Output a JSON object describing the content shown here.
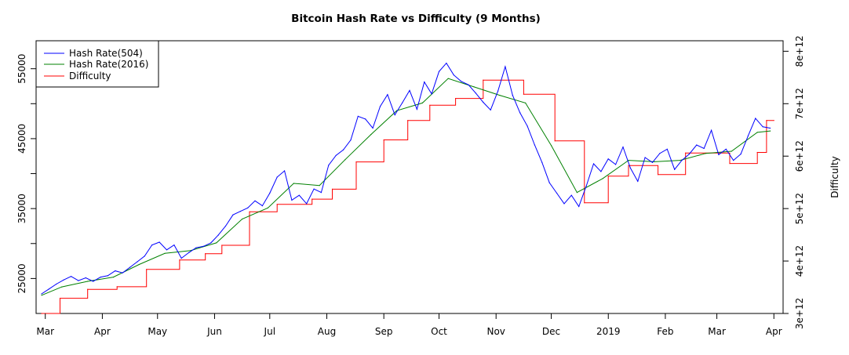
{
  "chart_data": {
    "type": "line",
    "title": "Bitcoin Hash Rate vs Difficulty (9 Months)",
    "xlabel": "",
    "ylabel_left": "",
    "ylabel_right": "Difficulty",
    "xlim": [
      "2018-02-24",
      "2019-04-06"
    ],
    "ylim_left": [
      20000,
      59000
    ],
    "ylim_right": [
      3000000000000.0,
      8200000000000.0
    ],
    "x_ticks": [
      {
        "date": "2018-03-01",
        "label": "Mar"
      },
      {
        "date": "2018-04-01",
        "label": "Apr"
      },
      {
        "date": "2018-05-01",
        "label": "May"
      },
      {
        "date": "2018-06-01",
        "label": "Jun"
      },
      {
        "date": "2018-07-01",
        "label": "Jul"
      },
      {
        "date": "2018-08-01",
        "label": "Aug"
      },
      {
        "date": "2018-09-01",
        "label": "Sep"
      },
      {
        "date": "2018-10-01",
        "label": "Oct"
      },
      {
        "date": "2018-11-01",
        "label": "Nov"
      },
      {
        "date": "2018-12-01",
        "label": "Dec"
      },
      {
        "date": "2019-01-01",
        "label": "2019"
      },
      {
        "date": "2019-02-01",
        "label": "Feb"
      },
      {
        "date": "2019-03-01",
        "label": "Mar"
      },
      {
        "date": "2019-04-01",
        "label": "Apr"
      }
    ],
    "y_ticks_left": [
      {
        "value": 25000,
        "label": "25000"
      },
      {
        "value": 35000,
        "label": "35000"
      },
      {
        "value": 45000,
        "label": "45000"
      },
      {
        "value": 55000,
        "label": "55000"
      }
    ],
    "y_minor_left": [
      30000,
      40000,
      50000
    ],
    "y_ticks_right": [
      {
        "value": 3000000000000.0,
        "label": "3e+12"
      },
      {
        "value": 4000000000000.0,
        "label": "4e+12"
      },
      {
        "value": 5000000000000.0,
        "label": "5e+12"
      },
      {
        "value": 6000000000000.0,
        "label": "6e+12"
      },
      {
        "value": 7000000000000.0,
        "label": "7e+12"
      },
      {
        "value": 8000000000000.0,
        "label": "8e+12"
      }
    ],
    "legend": {
      "position": "top-left",
      "entries": [
        {
          "name": "Hash Rate(504)",
          "color": "#0000ff"
        },
        {
          "name": "Hash Rate(2016)",
          "color": "#008000"
        },
        {
          "name": "Difficulty",
          "color": "#ff0000"
        }
      ]
    },
    "grid": false,
    "series": [
      {
        "name": "Hash Rate(504)",
        "axis": "left",
        "color": "#0000ff",
        "x": [
          "2018-02-27",
          "2018-03-03",
          "2018-03-07",
          "2018-03-11",
          "2018-03-15",
          "2018-03-19",
          "2018-03-23",
          "2018-03-27",
          "2018-03-31",
          "2018-04-04",
          "2018-04-08",
          "2018-04-12",
          "2018-04-16",
          "2018-04-20",
          "2018-04-24",
          "2018-04-28",
          "2018-05-02",
          "2018-05-06",
          "2018-05-10",
          "2018-05-14",
          "2018-05-18",
          "2018-05-22",
          "2018-05-26",
          "2018-05-30",
          "2018-06-03",
          "2018-06-07",
          "2018-06-11",
          "2018-06-15",
          "2018-06-19",
          "2018-06-23",
          "2018-06-27",
          "2018-07-01",
          "2018-07-05",
          "2018-07-09",
          "2018-07-13",
          "2018-07-17",
          "2018-07-21",
          "2018-07-25",
          "2018-07-29",
          "2018-08-02",
          "2018-08-06",
          "2018-08-10",
          "2018-08-14",
          "2018-08-18",
          "2018-08-22",
          "2018-08-26",
          "2018-08-30",
          "2018-09-03",
          "2018-09-07",
          "2018-09-11",
          "2018-09-15",
          "2018-09-19",
          "2018-09-23",
          "2018-09-27",
          "2018-10-01",
          "2018-10-05",
          "2018-10-09",
          "2018-10-13",
          "2018-10-17",
          "2018-10-21",
          "2018-10-25",
          "2018-10-29",
          "2018-11-02",
          "2018-11-06",
          "2018-11-10",
          "2018-11-14",
          "2018-11-18",
          "2018-11-22",
          "2018-11-26",
          "2018-11-30",
          "2018-12-04",
          "2018-12-08",
          "2018-12-12",
          "2018-12-16",
          "2018-12-20",
          "2018-12-24",
          "2018-12-28",
          "2019-01-01",
          "2019-01-05",
          "2019-01-09",
          "2019-01-13",
          "2019-01-17",
          "2019-01-21",
          "2019-01-25",
          "2019-01-29",
          "2019-02-02",
          "2019-02-06",
          "2019-02-10",
          "2019-02-14",
          "2019-02-18",
          "2019-02-22",
          "2019-02-26",
          "2019-03-02",
          "2019-03-06",
          "2019-03-10",
          "2019-03-14",
          "2019-03-18",
          "2019-03-22",
          "2019-03-26",
          "2019-03-30"
        ],
        "values": [
          22800,
          23500,
          24200,
          24800,
          25300,
          24700,
          25100,
          24600,
          25200,
          25400,
          26100,
          25800,
          26600,
          27400,
          28200,
          29800,
          30200,
          29100,
          29800,
          27900,
          28700,
          29400,
          29600,
          30100,
          31200,
          32500,
          34100,
          34600,
          35100,
          36100,
          35400,
          37200,
          39500,
          40400,
          36200,
          36900,
          35700,
          37800,
          37300,
          41200,
          42600,
          43400,
          44800,
          48200,
          47800,
          46500,
          49600,
          51300,
          48400,
          50100,
          51900,
          49200,
          53100,
          51400,
          54600,
          55800,
          54100,
          53200,
          52700,
          51500,
          50200,
          49100,
          51800,
          55300,
          51200,
          48700,
          46800,
          44100,
          41600,
          38700,
          37200,
          35700,
          36900,
          35300,
          38200,
          41400,
          40300,
          42100,
          41300,
          43800,
          40800,
          38900,
          42300,
          41600,
          42900,
          43500,
          40600,
          41900,
          42800,
          44100,
          43600,
          46200,
          42700,
          43500,
          41900,
          42800,
          45400,
          47900,
          46700,
          46500
        ]
      },
      {
        "name": "Hash Rate(2016)",
        "axis": "left",
        "color": "#008000",
        "x": [
          "2018-02-27",
          "2018-03-10",
          "2018-03-24",
          "2018-04-07",
          "2018-04-21",
          "2018-05-05",
          "2018-05-19",
          "2018-06-02",
          "2018-06-16",
          "2018-06-30",
          "2018-07-14",
          "2018-07-28",
          "2018-08-11",
          "2018-08-25",
          "2018-09-08",
          "2018-09-22",
          "2018-10-06",
          "2018-10-20",
          "2018-11-03",
          "2018-11-17",
          "2018-12-01",
          "2018-12-15",
          "2018-12-29",
          "2019-01-12",
          "2019-01-26",
          "2019-02-09",
          "2019-02-23",
          "2019-03-09",
          "2019-03-23",
          "2019-03-30"
        ],
        "values": [
          22600,
          23800,
          24600,
          25200,
          27000,
          28600,
          29000,
          30100,
          33500,
          35100,
          38600,
          38300,
          42000,
          45600,
          49000,
          50100,
          53600,
          52400,
          51200,
          50100,
          44000,
          37300,
          39300,
          41900,
          41700,
          41900,
          42900,
          43200,
          45900,
          46100
        ]
      },
      {
        "name": "Difficulty",
        "axis": "right",
        "color": "#ff0000",
        "step": true,
        "x": [
          "2018-02-27",
          "2018-03-09",
          "2018-03-24",
          "2018-04-09",
          "2018-04-25",
          "2018-05-13",
          "2018-05-27",
          "2018-06-05",
          "2018-06-20",
          "2018-07-05",
          "2018-07-24",
          "2018-08-04",
          "2018-08-17",
          "2018-09-01",
          "2018-09-14",
          "2018-09-26",
          "2018-10-10",
          "2018-10-25",
          "2018-11-16",
          "2018-12-03",
          "2018-12-19",
          "2019-01-01",
          "2019-01-12",
          "2019-01-28",
          "2019-02-12",
          "2019-03-08",
          "2019-03-23",
          "2019-03-28"
        ],
        "values": [
          3000000000000.0,
          3290000000000.0,
          3460000000000.0,
          3510000000000.0,
          3840000000000.0,
          4020000000000.0,
          4140000000000.0,
          4300000000000.0,
          4940000000000.0,
          5080000000000.0,
          5180000000000.0,
          5370000000000.0,
          5890000000000.0,
          6310000000000.0,
          6680000000000.0,
          6970000000000.0,
          7100000000000.0,
          7450000000000.0,
          7180000000000.0,
          6290000000000.0,
          5110000000000.0,
          5620000000000.0,
          5820000000000.0,
          5650000000000.0,
          6060000000000.0,
          5860000000000.0,
          6070000000000.0,
          6680000000000.0
        ]
      }
    ]
  }
}
